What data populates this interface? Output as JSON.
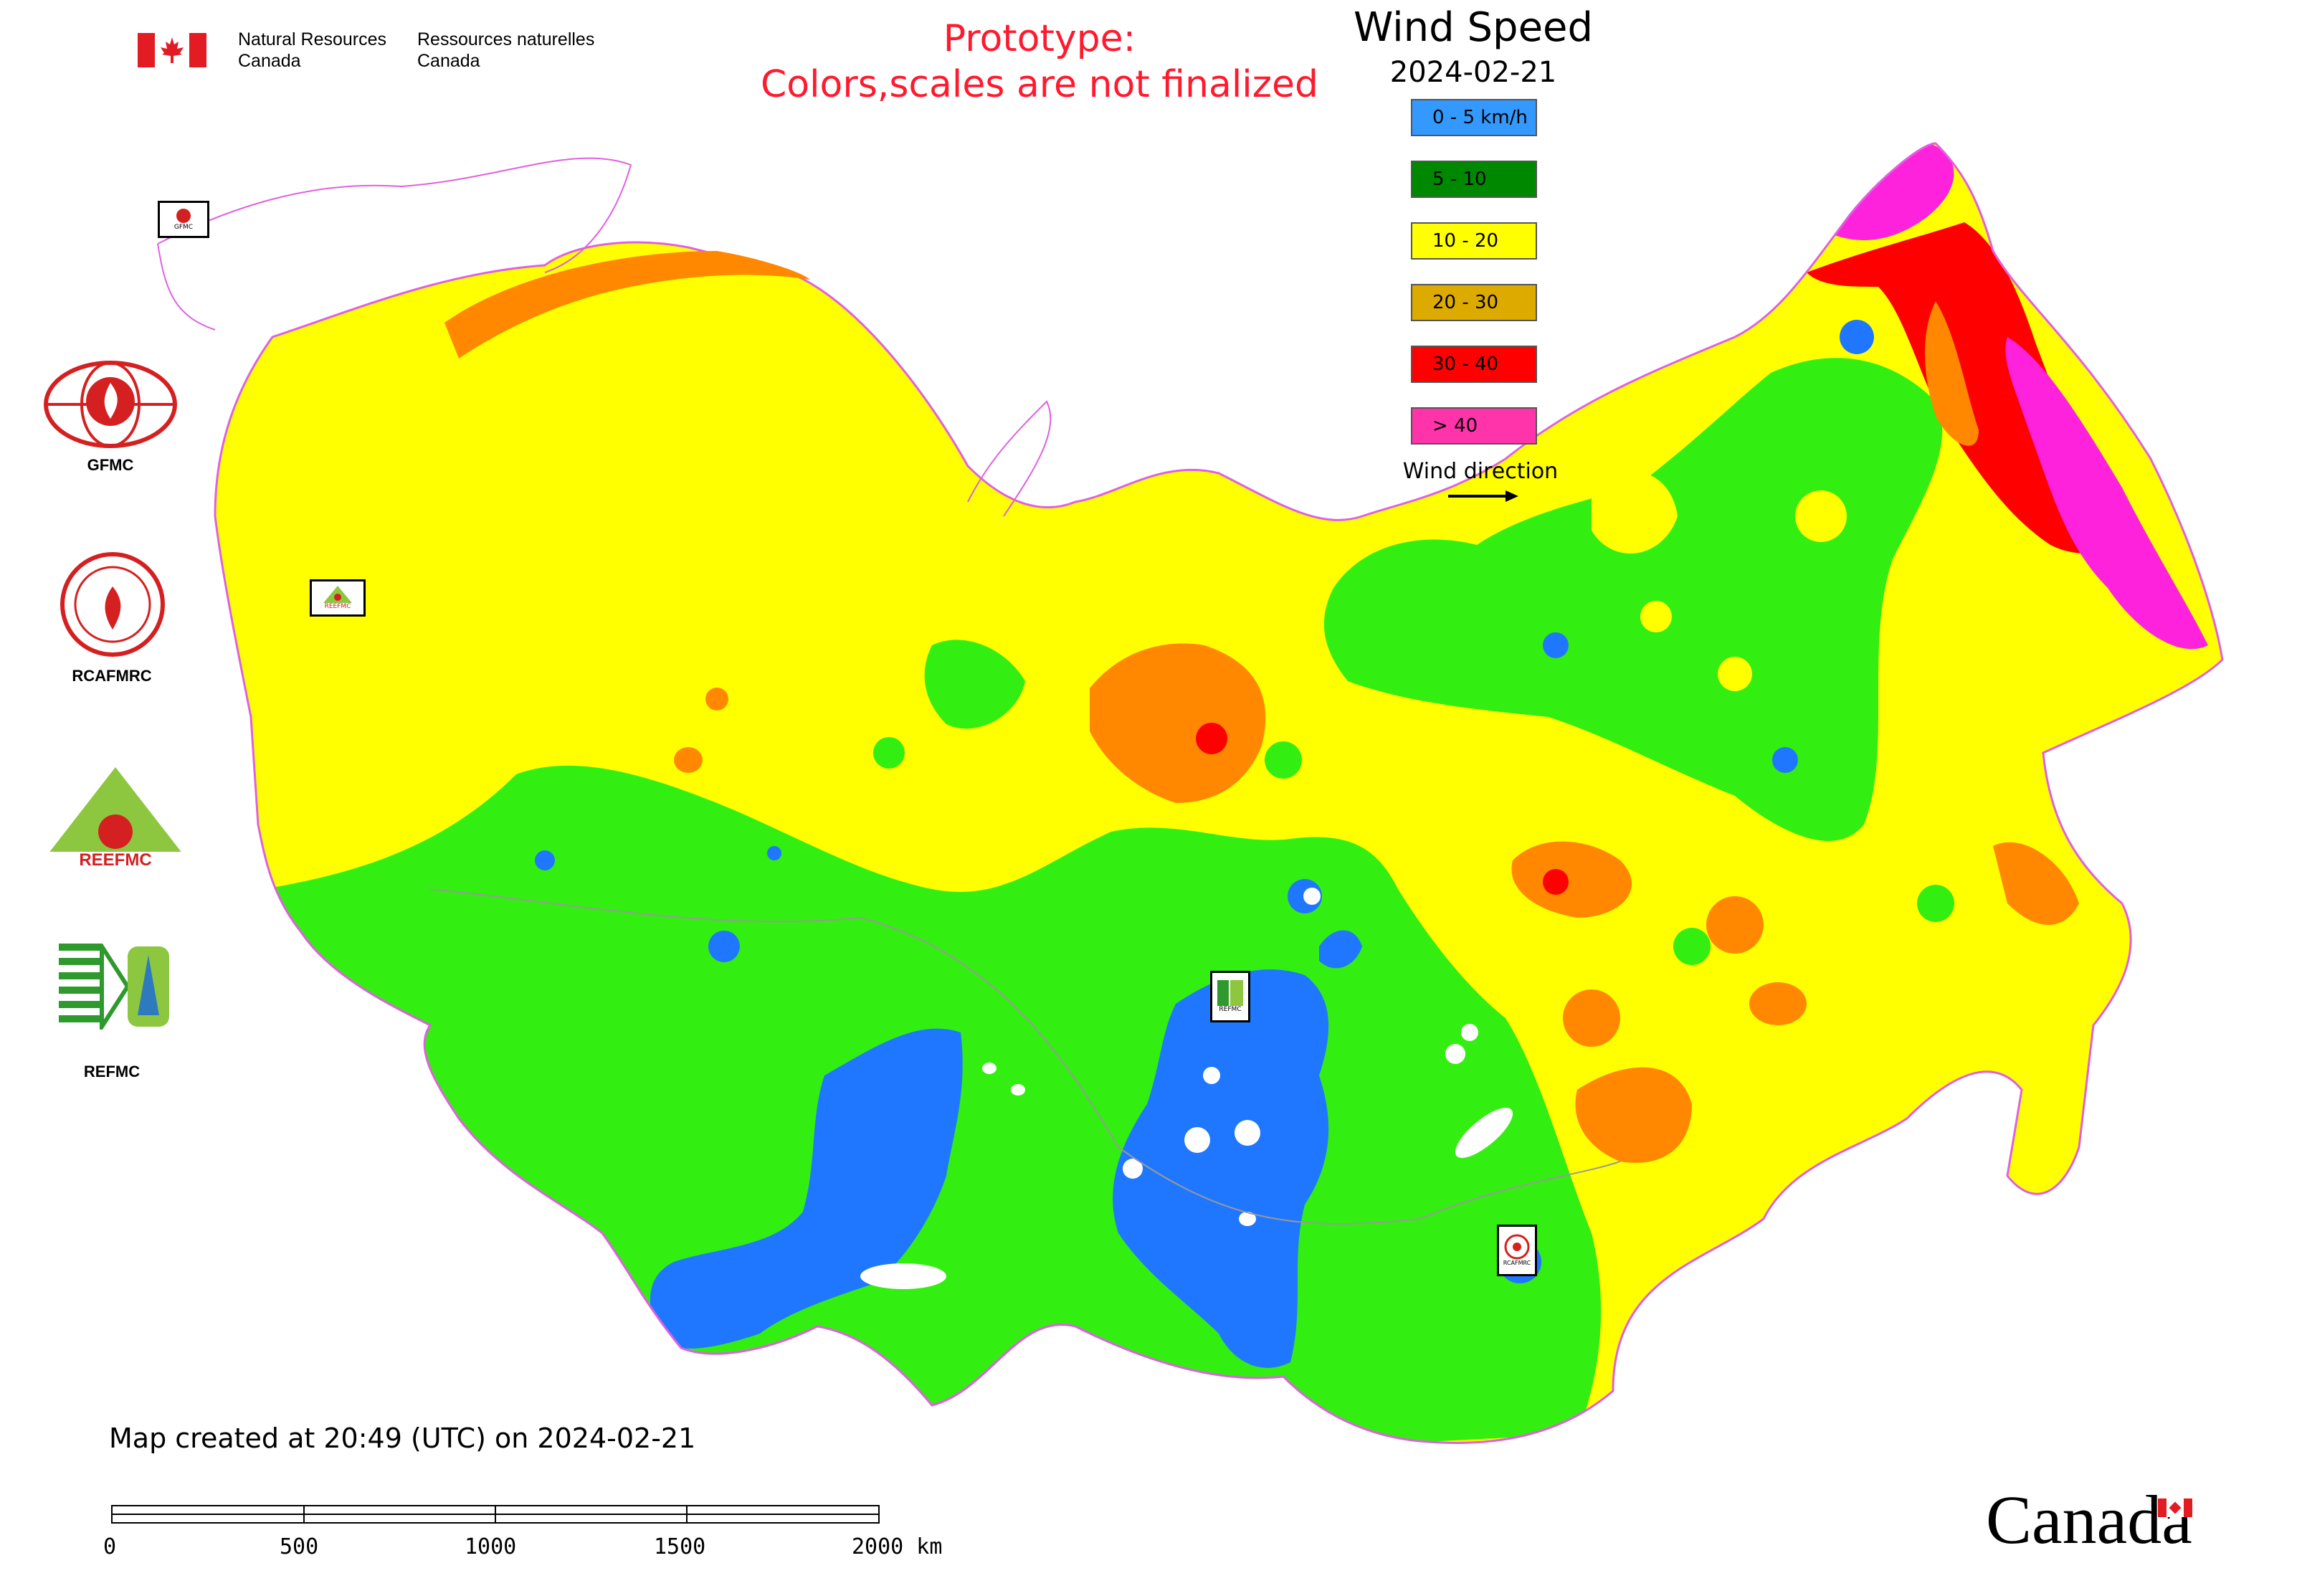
{
  "header": {
    "org_en_line1": "Natural Resources",
    "org_en_line2": "Canada",
    "org_fr_line1": "Ressources naturelles",
    "org_fr_line2": "Canada",
    "prototype_line1": "Prototype:",
    "prototype_line2": "Colors,scales are not finalized"
  },
  "legend": {
    "title": "Wind Speed",
    "date": "2024-02-21",
    "items": [
      {
        "label": "0 - 5 km/h",
        "color": "#3399ff"
      },
      {
        "label": "5 - 10",
        "color": "#008800"
      },
      {
        "label": "10 - 20",
        "color": "#ffff00"
      },
      {
        "label": "20 - 30",
        "color": "#ddaa00"
      },
      {
        "label": "30 - 40",
        "color": "#ff0000"
      },
      {
        "label": "> 40",
        "color": "#ff33aa"
      }
    ],
    "wind_direction_label": "Wind direction"
  },
  "map_colors": {
    "calm": "#1f77ff",
    "light": "#33ee11",
    "moderate": "#ffff00",
    "fresh": "#ff8800",
    "strong": "#ff0000",
    "gale": "#ff22dd",
    "border": "#e060e0"
  },
  "organizations": [
    {
      "name": "GFMC",
      "icon": "flame-globe-logo"
    },
    {
      "name": "RCAFMRC",
      "icon": "round-seal-logo"
    },
    {
      "name": "REEFMC",
      "icon": "green-triangle-logo"
    },
    {
      "name": "REFMC",
      "icon": "sigma-tree-logo"
    }
  ],
  "map_markers": [
    {
      "label": "GFMC"
    },
    {
      "label": "REEFMC"
    },
    {
      "label": "REFMC"
    },
    {
      "label": "RCAFMRC"
    }
  ],
  "footer": {
    "created_text": "Map created at 20:49 (UTC) on 2024-02-21",
    "scale_labels": [
      "0",
      "500",
      "1000",
      "1500",
      "2000 km"
    ],
    "canada_wordmark": "Canada"
  }
}
